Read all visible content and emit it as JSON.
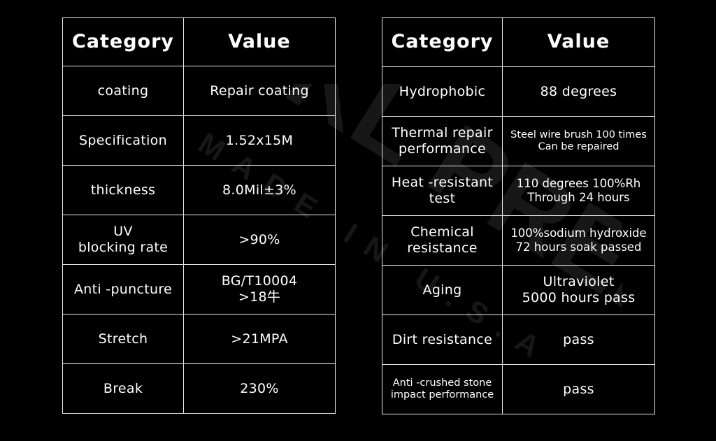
{
  "watermark": {
    "brand": "SPKL PREM",
    "sub": "MADE IN U.S.A"
  },
  "left_table": {
    "headers": {
      "category": "Category",
      "value": "Value"
    },
    "rows": [
      {
        "category": "coating",
        "value": "Repair coating"
      },
      {
        "category": "Specification",
        "value": "1.52x15M"
      },
      {
        "category": "thickness",
        "value": "8.0Mil±3%"
      },
      {
        "category": "UV\nblocking rate",
        "value": ">90%"
      },
      {
        "category": "Anti -puncture",
        "value": "BG/T10004\n>18牛"
      },
      {
        "category": "Stretch",
        "value": ">21MPA"
      },
      {
        "category": "Break",
        "value": "230%"
      }
    ]
  },
  "right_table": {
    "headers": {
      "category": "Category",
      "value": "Value"
    },
    "rows": [
      {
        "category": "Hydrophobic",
        "value": "88 degrees"
      },
      {
        "category": "Thermal repair\nperformance",
        "value": "Steel wire brush 100 times\nCan be repaired"
      },
      {
        "category": "Heat -resistant\ntest",
        "value": "110 degrees 100%Rh\nThrough 24 hours"
      },
      {
        "category": "Chemical\nresistance",
        "value": "100%sodium hydroxide\n72 hours soak passed"
      },
      {
        "category": "Aging",
        "value": "Ultraviolet\n5000 hours pass"
      },
      {
        "category": "Dirt resistance",
        "value": "pass"
      },
      {
        "category": "Anti -crushed stone\nimpact performance",
        "value": "pass"
      }
    ]
  }
}
